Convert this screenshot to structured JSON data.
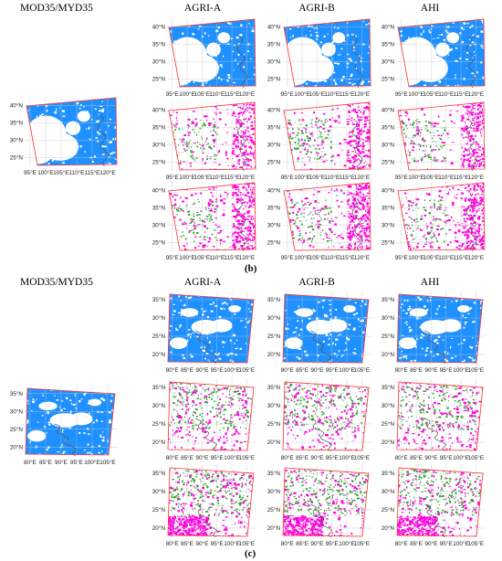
{
  "colors": {
    "clear": "#ffffff",
    "cloud": "#1e90ff",
    "miss": "#ff00dd",
    "false_alarm": "#2ca02c",
    "domain": "#ff3333",
    "coast": "#555555",
    "grid": "#c8c8c8"
  },
  "part_b": {
    "label": "(b)",
    "reference_header": "MOD35/MYD35",
    "column_headers": [
      "AGRI-A",
      "AGRI-B",
      "AHI"
    ],
    "lat_ticks": [
      "25°N",
      "30°N",
      "35°N",
      "40°N"
    ],
    "lon_ticks": [
      "95°E",
      "100°E",
      "105°E",
      "110°E",
      "115°E",
      "120°E"
    ]
  },
  "part_c": {
    "label": "(c)",
    "reference_header": "MOD35/MYD35",
    "column_headers": [
      "AGRI-A",
      "AGRI-B",
      "AHI"
    ],
    "lat_ticks": [
      "20°N",
      "25°N",
      "30°N",
      "35°N"
    ],
    "lon_ticks": [
      "80°E",
      "85°E",
      "90°E",
      "95°E",
      "100°E",
      "105°E"
    ]
  }
}
